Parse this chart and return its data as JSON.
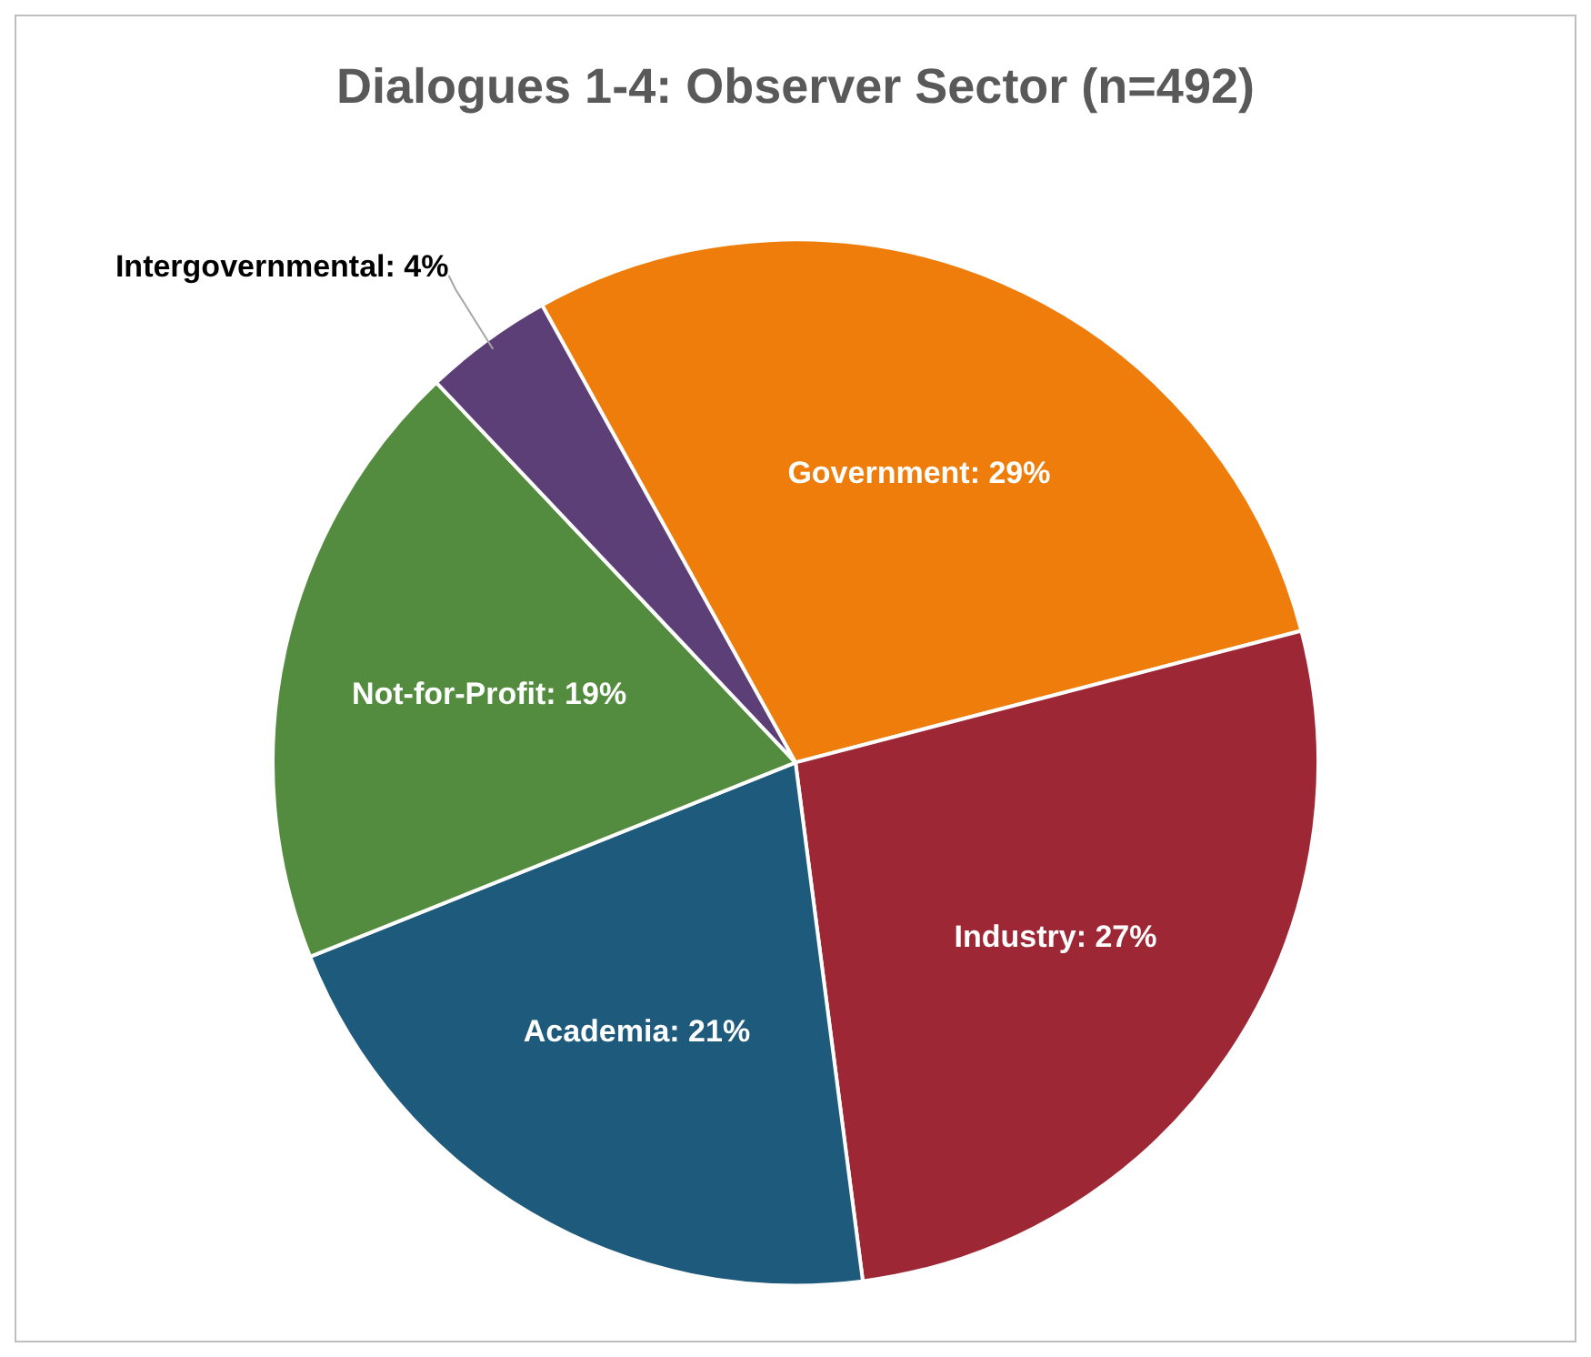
{
  "chart_data": {
    "type": "pie",
    "title": "Dialogues 1-4: Observer Sector (n=492)",
    "categories": [
      "Government",
      "Industry",
      "Academia",
      "Not-for-Profit",
      "Intergovernmental"
    ],
    "values": [
      29,
      27,
      21,
      19,
      4
    ],
    "colors": [
      "#ee7d0b",
      "#9e2735",
      "#1e5a7c",
      "#548c3f",
      "#5d3f78"
    ],
    "value_labels": [
      "29%",
      "27%",
      "21%",
      "19%",
      "4%"
    ],
    "legend": false
  }
}
